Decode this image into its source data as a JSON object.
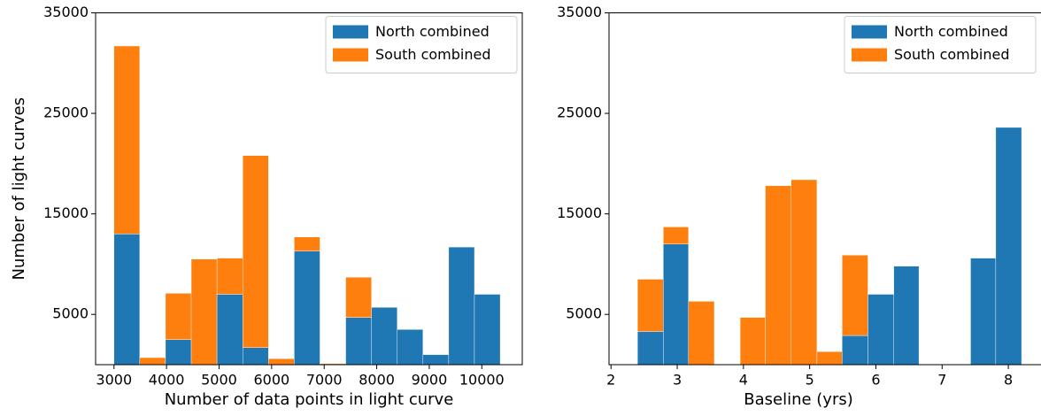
{
  "chart_data": [
    {
      "type": "histogram",
      "stacked": true,
      "legend": "upper right",
      "xlabel": "Number of data points in light curve",
      "ylabel": "Number of light curves",
      "bins": [
        3000,
        3490,
        3980,
        4470,
        4960,
        5450,
        5940,
        6430,
        6920,
        7410,
        7900,
        8390,
        8880,
        9370,
        9860,
        10350
      ],
      "series": [
        {
          "name": "North combined",
          "color": "#1f77b4",
          "values": [
            13000,
            0,
            2500,
            0,
            7000,
            1700,
            0,
            11300,
            0,
            4700,
            5700,
            3500,
            1000,
            11700,
            7000
          ]
        },
        {
          "name": "South combined",
          "color": "#ff7f0e",
          "values": [
            18700,
            700,
            4600,
            10500,
            3600,
            19100,
            600,
            1400,
            100,
            4000,
            0,
            0,
            0,
            0,
            0
          ]
        }
      ],
      "xlim": [
        2650,
        10770
      ],
      "ylim": [
        0,
        35000
      ],
      "xticks": [
        3000,
        4000,
        5000,
        6000,
        7000,
        8000,
        9000,
        10000
      ],
      "yticks": [
        5000,
        15000,
        25000,
        35000
      ]
    },
    {
      "type": "histogram",
      "stacked": true,
      "legend": "upper right",
      "xlabel": "Baseline (yrs)",
      "bins": [
        2.4,
        2.79,
        3.17,
        3.56,
        3.95,
        4.33,
        4.72,
        5.11,
        5.49,
        5.88,
        6.27,
        6.65,
        7.04,
        7.43,
        7.81,
        8.2
      ],
      "series": [
        {
          "name": "North combined",
          "color": "#1f77b4",
          "values": [
            3300,
            12000,
            0,
            0,
            0,
            0,
            0,
            0,
            2900,
            7000,
            9800,
            0,
            0,
            10600,
            23600
          ]
        },
        {
          "name": "South combined",
          "color": "#ff7f0e",
          "values": [
            5200,
            1700,
            6300,
            0,
            4700,
            17800,
            18400,
            1300,
            8000,
            0,
            0,
            0,
            0,
            0,
            0
          ]
        }
      ],
      "xlim": [
        1.97,
        8.52
      ],
      "ylim": [
        0,
        35000
      ],
      "xticks": [
        2,
        3,
        4,
        5,
        6,
        7,
        8
      ],
      "yticks": [
        5000,
        15000,
        25000,
        35000
      ]
    }
  ]
}
